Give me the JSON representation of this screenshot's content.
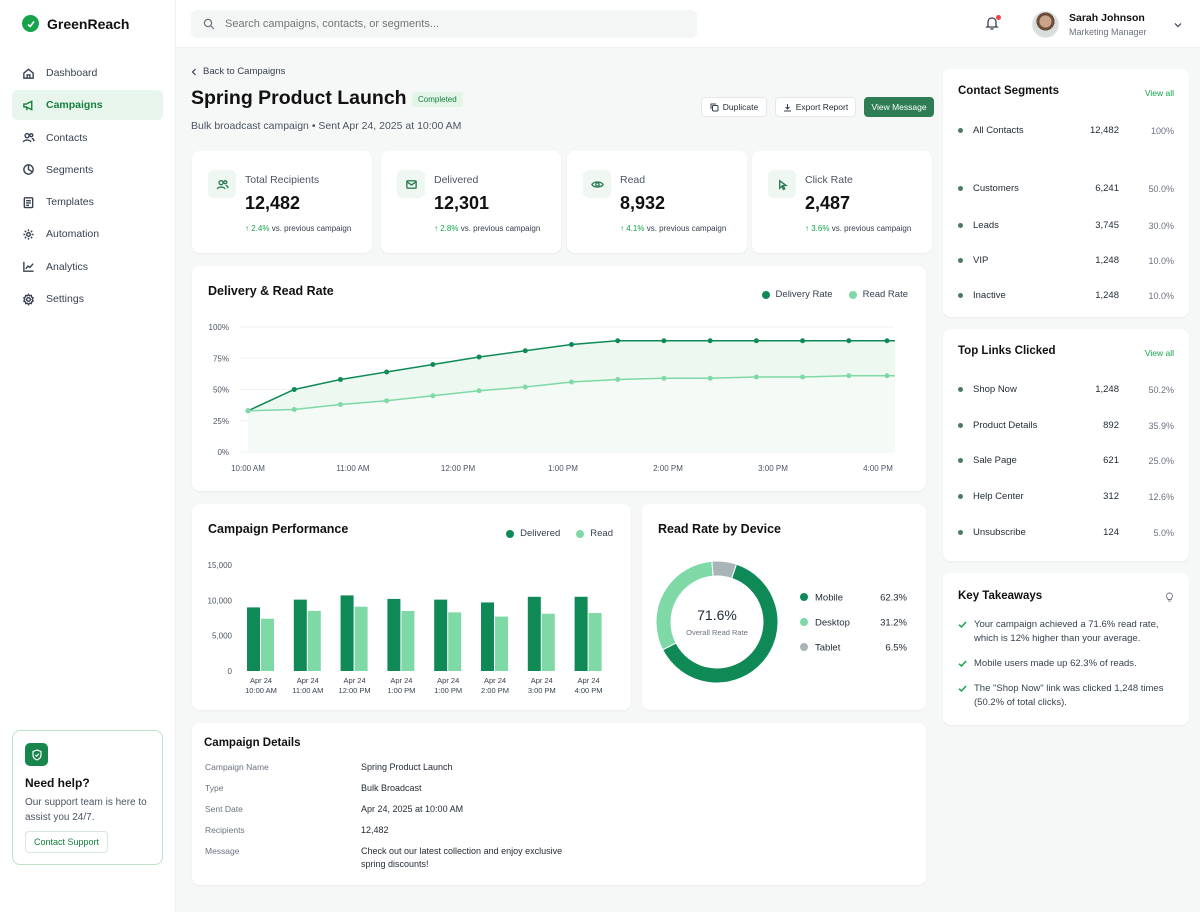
{
  "brand": {
    "name": "GreenReach"
  },
  "search": {
    "placeholder": "Search campaigns, contacts, or segments..."
  },
  "user": {
    "name": "Sarah Johnson",
    "role": "Marketing Manager"
  },
  "sidebar": {
    "items": [
      {
        "label": "Dashboard",
        "icon": "home-icon"
      },
      {
        "label": "Campaigns",
        "icon": "megaphone-icon",
        "active": true
      },
      {
        "label": "Contacts",
        "icon": "users-icon"
      },
      {
        "label": "Segments",
        "icon": "segments-icon"
      },
      {
        "label": "Templates",
        "icon": "document-icon"
      },
      {
        "label": "Automation",
        "icon": "automation-icon"
      },
      {
        "label": "Analytics",
        "icon": "chart-icon"
      },
      {
        "label": "Settings",
        "icon": "gear-icon"
      }
    ]
  },
  "help": {
    "title": "Need help?",
    "text": "Our support team is here to assist you 24/7.",
    "button": "Contact Support"
  },
  "header": {
    "back": "Back to Campaigns",
    "title": "Spring Product Launch",
    "status": "Completed",
    "subtitle": "Bulk broadcast campaign • Sent Apr 24, 2025 at 10:00 AM",
    "actions": {
      "duplicate": "Duplicate",
      "export": "Export Report",
      "view": "View Message"
    }
  },
  "stats": [
    {
      "label": "Total Recipients",
      "value": "12,482",
      "change": "↑ 2.4%",
      "suffix": "vs. previous campaign",
      "icon": "users-icon"
    },
    {
      "label": "Delivered",
      "value": "12,301",
      "change": "↑ 2.8%",
      "suffix": "vs. previous campaign",
      "icon": "mail-icon"
    },
    {
      "label": "Read",
      "value": "8,932",
      "change": "↑ 4.1%",
      "suffix": "vs. previous campaign",
      "icon": "eye-icon"
    },
    {
      "label": "Click Rate",
      "value": "2,487",
      "change": "↑ 3.6%",
      "suffix": "vs. previous campaign",
      "icon": "cursor-icon"
    }
  ],
  "colors": {
    "delivered": "#0f8a56",
    "read": "#7ed9a6",
    "accent": "#16a34a"
  },
  "chart_data": [
    {
      "type": "line",
      "title": "Delivery & Read Rate",
      "legend_position": "top-right",
      "x_ticks": [
        "10:00 AM",
        "11:00 AM",
        "12:00 PM",
        "1:00 PM",
        "2:00 PM",
        "3:00 PM",
        "4:00 PM"
      ],
      "y_ticks": [
        "100%",
        "75%",
        "50%",
        "25%",
        "0%"
      ],
      "ylim": [
        0,
        100
      ],
      "x": [
        "10:00 AM",
        "10:20 AM",
        "10:40 AM",
        "11:00 AM",
        "11:20 AM",
        "11:40 AM",
        "12:00 PM",
        "12:20 PM",
        "12:40 PM",
        "1:00 PM",
        "1:20 PM",
        "1:40 PM",
        "2:00 PM",
        "2:20 PM",
        "2:40 PM"
      ],
      "series": [
        {
          "name": "Delivery Rate",
          "color": "#0f8a56",
          "values": [
            33,
            50,
            58,
            64,
            70,
            76,
            81,
            86,
            89,
            89,
            89,
            89,
            89,
            89,
            89
          ]
        },
        {
          "name": "Read Rate",
          "color": "#7ed9a6",
          "values": [
            33,
            34,
            38,
            41,
            45,
            49,
            52,
            56,
            58,
            59,
            59,
            60,
            60,
            61,
            61
          ]
        }
      ]
    },
    {
      "type": "bar",
      "title": "Campaign Performance",
      "legend_position": "top-right",
      "categories": [
        "Apr 24\n10:00 AM",
        "Apr 24\n11:00 AM",
        "Apr 24\n12:00 PM",
        "Apr 24\n1:00 PM",
        "Apr 24\n1:00 PM",
        "Apr 24\n2:00 PM",
        "Apr 24\n3:00 PM",
        "Apr 24\n4:00 PM"
      ],
      "y_ticks": [
        "15,000",
        "10,000",
        "5,000",
        "0"
      ],
      "ylim": [
        0,
        15000
      ],
      "series": [
        {
          "name": "Delivered",
          "color": "#0f8a56",
          "values": [
            9000,
            10100,
            10700,
            10200,
            10100,
            9700,
            10500,
            10500
          ]
        },
        {
          "name": "Read",
          "color": "#7ed9a6",
          "values": [
            7400,
            8500,
            9100,
            8500,
            8300,
            7700,
            8100,
            8200
          ]
        }
      ]
    },
    {
      "type": "pie",
      "title": "Read Rate by Device",
      "center_value": "71.6%",
      "center_label": "Overall Read Rate",
      "slices": [
        {
          "label": "Mobile",
          "value": 62.3,
          "display": "62.3%",
          "color": "#0f8a56"
        },
        {
          "label": "Desktop",
          "value": 31.2,
          "display": "31.2%",
          "color": "#7ed9a6"
        },
        {
          "label": "Tablet",
          "value": 6.5,
          "display": "6.5%",
          "color": "#a9b4b8"
        }
      ]
    }
  ],
  "segments": {
    "title": "Contact Segments",
    "view_all": "View all",
    "items": [
      {
        "name": "All Contacts",
        "value": "12,482",
        "pct": "100%"
      },
      {
        "name": "Customers",
        "value": "6,241",
        "pct": "50.0%"
      },
      {
        "name": "Leads",
        "value": "3,745",
        "pct": "30.0%"
      },
      {
        "name": "VIP",
        "value": "1,248",
        "pct": "10.0%"
      },
      {
        "name": "Inactive",
        "value": "1,248",
        "pct": "10.0%"
      }
    ]
  },
  "links": {
    "title": "Top Links Clicked",
    "view_all": "View all",
    "items": [
      {
        "name": "Shop Now",
        "value": "1,248",
        "pct": "50.2%"
      },
      {
        "name": "Product Details",
        "value": "892",
        "pct": "35.9%"
      },
      {
        "name": "Sale Page",
        "value": "621",
        "pct": "25.0%"
      },
      {
        "name": "Help Center",
        "value": "312",
        "pct": "12.6%"
      },
      {
        "name": "Unsubscribe",
        "value": "124",
        "pct": "5.0%"
      }
    ]
  },
  "takeaways": {
    "title": "Key Takeaways",
    "items": [
      "Your campaign achieved a 71.6% read rate, which is 12% higher than your average.",
      "Mobile users made up 62.3% of reads.",
      "The \"Shop Now\" link was clicked 1,248 times (50.2% of total clicks)."
    ]
  },
  "details": {
    "title": "Campaign Details",
    "rows": [
      {
        "label": "Campaign Name",
        "value": "Spring Product Launch"
      },
      {
        "label": "Type",
        "value": "Bulk Broadcast"
      },
      {
        "label": "Sent Date",
        "value": "Apr 24, 2025 at 10:00 AM"
      },
      {
        "label": "Recipients",
        "value": "12,482"
      },
      {
        "label": "Message",
        "value": "Check out our latest collection and enjoy exclusive spring discounts!"
      }
    ]
  }
}
